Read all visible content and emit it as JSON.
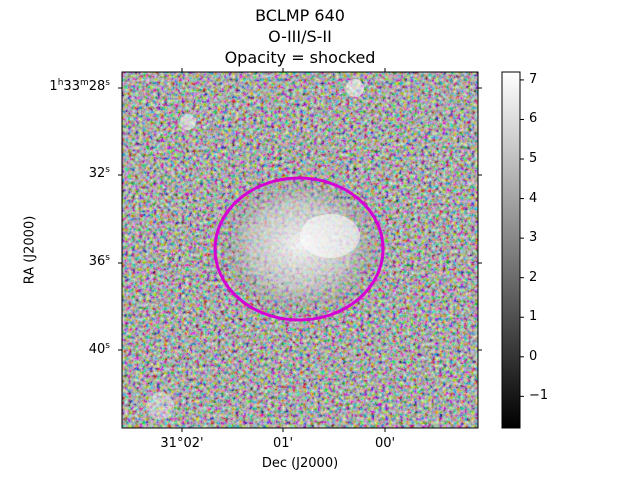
{
  "chart_data": {
    "type": "heatmap",
    "title": "BCLMP 640",
    "subtitle_1": "O-III/S-II",
    "subtitle_2": "Opacity = shocked",
    "xlabel": "Dec (J2000)",
    "ylabel": "RA (J2000)",
    "x_ticks": [
      "31°02'",
      "01'",
      "00'"
    ],
    "y_ticks": [
      {
        "base": "1",
        "sup1": "h",
        "mid": "33",
        "sup2": "m",
        "num": "28",
        "sup3": "s"
      },
      {
        "base": "",
        "sup1": "",
        "mid": "",
        "sup2": "",
        "num": "32",
        "sup3": "s"
      },
      {
        "base": "",
        "sup1": "",
        "mid": "",
        "sup2": "",
        "num": "36",
        "sup3": "s"
      },
      {
        "base": "",
        "sup1": "",
        "mid": "",
        "sup2": "",
        "num": "40",
        "sup3": "s"
      }
    ],
    "colormap": "gray",
    "colorbar": {
      "vmin": -1.8,
      "vmax": 7.2,
      "ticks": [
        -1,
        0,
        1,
        2,
        3,
        4,
        5,
        6,
        7
      ]
    },
    "annotation": {
      "shape": "ellipse",
      "color": "#d400d4"
    }
  }
}
